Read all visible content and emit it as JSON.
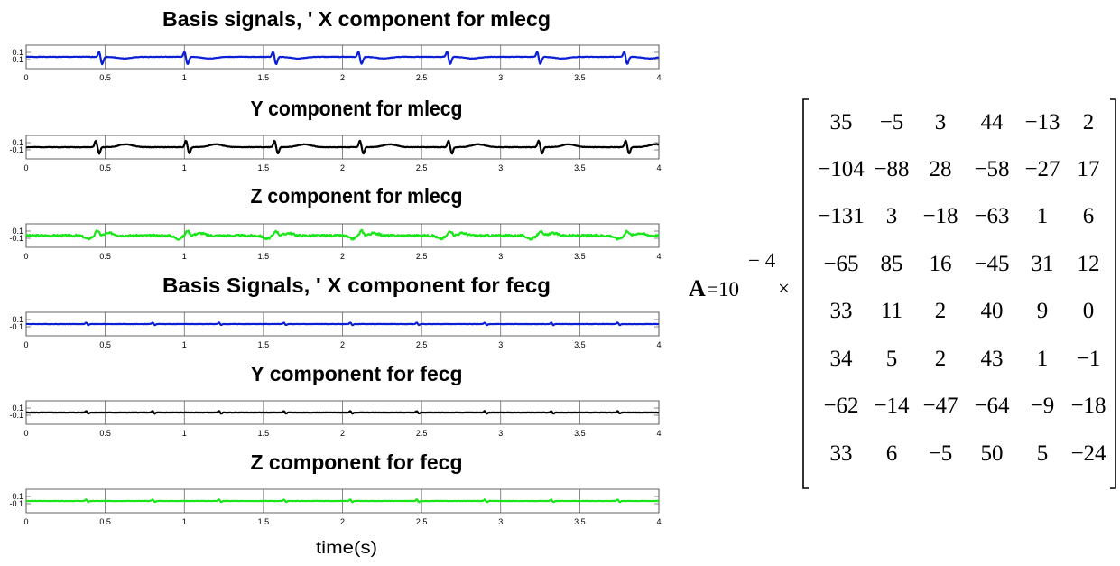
{
  "chart_data": [
    {
      "type": "line",
      "title": "Basis signals, '  X component for mlecg",
      "series": [
        {
          "color": "#0a1fd6",
          "kind": "mat",
          "seed": 1,
          "beats": [
            0.48,
            1.02,
            1.58,
            2.12,
            2.68,
            3.25,
            3.8
          ],
          "wave": "qrs"
        }
      ],
      "xlim": [
        0,
        4
      ],
      "ylim": [
        -0.1,
        0.1
      ],
      "xticks": [
        "0",
        "0.5",
        "1",
        "1.5",
        "2",
        "2.5",
        "3",
        "3.5",
        "4"
      ],
      "yticks": [
        "0.1",
        "-0.1"
      ],
      "xlabel": ""
    },
    {
      "type": "line",
      "title": "Y component for mlecg",
      "series": [
        {
          "color": "#000000",
          "kind": "mat",
          "seed": 2,
          "beats": [
            0.45,
            1.02,
            1.58,
            2.12,
            2.68,
            3.25,
            3.8
          ],
          "wave": "biphasic"
        }
      ],
      "xlim": [
        0,
        4
      ],
      "ylim": [
        -0.1,
        0.1
      ],
      "xticks": [
        "0",
        "0.5",
        "1",
        "1.5",
        "2",
        "2.5",
        "3",
        "3.5",
        "4"
      ],
      "yticks": [
        "0.1",
        "-0.1"
      ],
      "xlabel": ""
    },
    {
      "type": "line",
      "title": "Z component for mlecg",
      "series": [
        {
          "color": "#19e619",
          "kind": "mat",
          "seed": 3,
          "beats": [
            0.45,
            1.02,
            1.58,
            2.12,
            2.68,
            3.25,
            3.8
          ],
          "wave": "noisy"
        }
      ],
      "xlim": [
        0,
        4
      ],
      "ylim": [
        -0.1,
        0.1
      ],
      "xticks": [
        "0",
        "0.5",
        "1",
        "1.5",
        "2",
        "2.5",
        "3",
        "3.5",
        "4"
      ],
      "yticks": [
        "0.1",
        "-0.1"
      ],
      "xlabel": ""
    },
    {
      "type": "line",
      "title": "Basis Signals, '  X component for fecg",
      "series": [
        {
          "color": "#0a1fd6",
          "kind": "fet",
          "seed": 4,
          "beats": [
            0.38,
            0.8,
            1.22,
            1.63,
            2.05,
            2.47,
            2.9,
            3.32,
            3.74
          ],
          "wave": "small"
        }
      ],
      "xlim": [
        0,
        4
      ],
      "ylim": [
        -0.1,
        0.1
      ],
      "xticks": [
        "0",
        "0.5",
        "1",
        "1.5",
        "2",
        "2.5",
        "3",
        "3.5",
        "4"
      ],
      "yticks": [
        "0.1",
        "-0.1"
      ],
      "xlabel": ""
    },
    {
      "type": "line",
      "title": "Y component  for fecg",
      "series": [
        {
          "color": "#000000",
          "kind": "fet",
          "seed": 5,
          "beats": [
            0.38,
            0.8,
            1.22,
            1.63,
            2.05,
            2.47,
            2.9,
            3.32,
            3.74
          ],
          "wave": "small"
        }
      ],
      "xlim": [
        0,
        4
      ],
      "ylim": [
        -0.1,
        0.1
      ],
      "xticks": [
        "0",
        "0.5",
        "1",
        "1.5",
        "2",
        "2.5",
        "3",
        "3.5",
        "4"
      ],
      "yticks": [
        "0.1",
        "-0.1"
      ],
      "xlabel": ""
    },
    {
      "type": "line",
      "title": "Z component  for fecg",
      "series": [
        {
          "color": "#19e619",
          "kind": "fet",
          "seed": 6,
          "beats": [
            0.38,
            0.8,
            1.22,
            1.63,
            2.05,
            2.47,
            2.9,
            3.32,
            3.74
          ],
          "wave": "small"
        }
      ],
      "xlim": [
        0,
        4
      ],
      "ylim": [
        -0.1,
        0.1
      ],
      "xticks": [
        "0",
        "0.5",
        "1",
        "1.5",
        "2",
        "2.5",
        "3",
        "3.5",
        "4"
      ],
      "yticks": [
        "0.1",
        "-0.1"
      ],
      "xlabel": "time(s)"
    }
  ],
  "equation": {
    "lhs": "A",
    "equals": "=10",
    "exponent": "− 4",
    "times": "×",
    "matrix": [
      [
        "35",
        "−5",
        "3",
        "44",
        "−13",
        "2"
      ],
      [
        "−104",
        "−88",
        "28",
        "−58",
        "−27",
        "17"
      ],
      [
        "−131",
        "3",
        "−18",
        "−63",
        "1",
        "6"
      ],
      [
        "−65",
        "85",
        "16",
        "−45",
        "31",
        "12"
      ],
      [
        "33",
        "11",
        "2",
        "40",
        "9",
        "0"
      ],
      [
        "34",
        "5",
        "2",
        "43",
        "1",
        "−1"
      ],
      [
        "−62",
        "−14",
        "−47",
        "−64",
        "−9",
        "−18"
      ],
      [
        "33",
        "6",
        "−5",
        "50",
        "5",
        "−24"
      ]
    ]
  }
}
